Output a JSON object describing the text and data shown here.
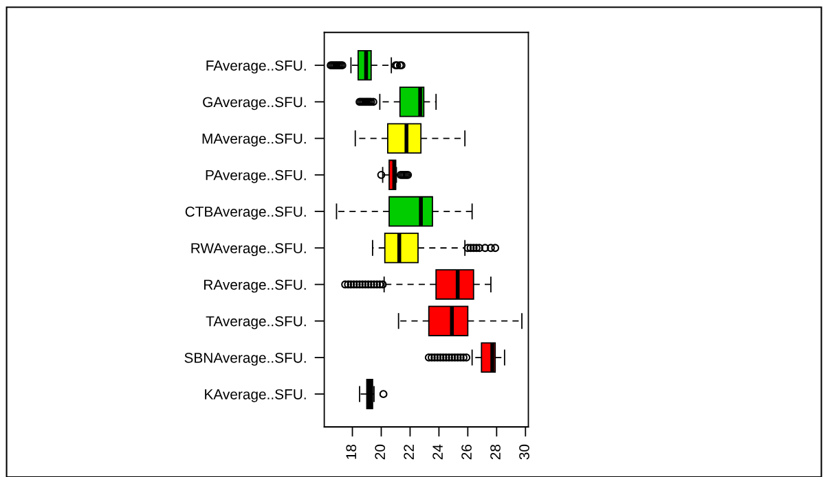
{
  "chart_data": {
    "type": "box",
    "orientation": "horizontal",
    "categories": [
      "FAverage..SFU.",
      "GAverage..SFU.",
      "MAverage..SFU.",
      "PAverage..SFU.",
      "CTBAverage..SFU.",
      "RWAverage..SFU.",
      "RAverage..SFU.",
      "TAverage..SFU.",
      "SBNAverage..SFU.",
      "KAverage..SFU."
    ],
    "colors": [
      "#00cc00",
      "#00cc00",
      "#ffff00",
      "#ff0000",
      "#00cc00",
      "#ffff00",
      "#ff0000",
      "#ff0000",
      "#ff0000",
      "#000000"
    ],
    "boxes": [
      {
        "low": 17.9,
        "q1": 18.4,
        "median": 18.95,
        "q3": 19.3,
        "high": 20.7,
        "outliers": [
          16.5,
          16.6,
          16.7,
          16.8,
          16.9,
          17.0,
          17.1,
          17.2,
          17.3,
          21.0,
          21.1,
          21.3,
          21.4
        ]
      },
      {
        "low": 19.9,
        "q1": 21.3,
        "median": 22.7,
        "q3": 22.95,
        "high": 23.8,
        "outliers": [
          18.5,
          18.6,
          18.7,
          18.8,
          18.9,
          19.0,
          19.1,
          19.2,
          19.3,
          19.45
        ]
      },
      {
        "low": 18.2,
        "q1": 20.45,
        "median": 21.75,
        "q3": 22.75,
        "high": 25.8
      },
      {
        "low": 20.1,
        "q1": 20.55,
        "median": 20.9,
        "q3": 21.0,
        "high": 21.05,
        "outliers": [
          20.0,
          21.35,
          21.45,
          21.55,
          21.65,
          21.75,
          21.85
        ]
      },
      {
        "low": 16.9,
        "q1": 20.55,
        "median": 22.75,
        "q3": 23.55,
        "high": 26.3
      },
      {
        "low": 19.4,
        "q1": 20.25,
        "median": 21.25,
        "q3": 22.55,
        "high": 25.8,
        "outliers": [
          26.0,
          26.2,
          26.4,
          26.6,
          26.8,
          27.2,
          27.6,
          27.9
        ]
      },
      {
        "low": 20.2,
        "q1": 23.8,
        "median": 25.3,
        "q3": 26.4,
        "high": 27.6,
        "outliers": [
          17.5,
          17.7,
          17.9,
          18.1,
          18.3,
          18.5,
          18.7,
          18.9,
          19.1,
          19.3,
          19.5,
          19.7,
          19.9,
          20.1
        ]
      },
      {
        "low": 21.2,
        "q1": 23.3,
        "median": 24.9,
        "q3": 26.0,
        "high": 29.75
      },
      {
        "low": 26.3,
        "q1": 26.95,
        "median": 27.7,
        "q3": 27.9,
        "high": 28.55,
        "outliers": [
          23.3,
          23.5,
          23.7,
          23.9,
          24.1,
          24.3,
          24.5,
          24.7,
          24.9,
          25.1,
          25.3,
          25.5,
          25.7,
          25.9
        ]
      },
      {
        "low": 18.5,
        "q1": 19.0,
        "median": 19.2,
        "q3": 19.4,
        "high": 19.5,
        "outliers": [
          20.15
        ]
      }
    ],
    "xlim": [
      16.05,
      30.2
    ],
    "xticks": [
      18,
      20,
      22,
      24,
      26,
      28,
      30
    ],
    "grid": false
  }
}
